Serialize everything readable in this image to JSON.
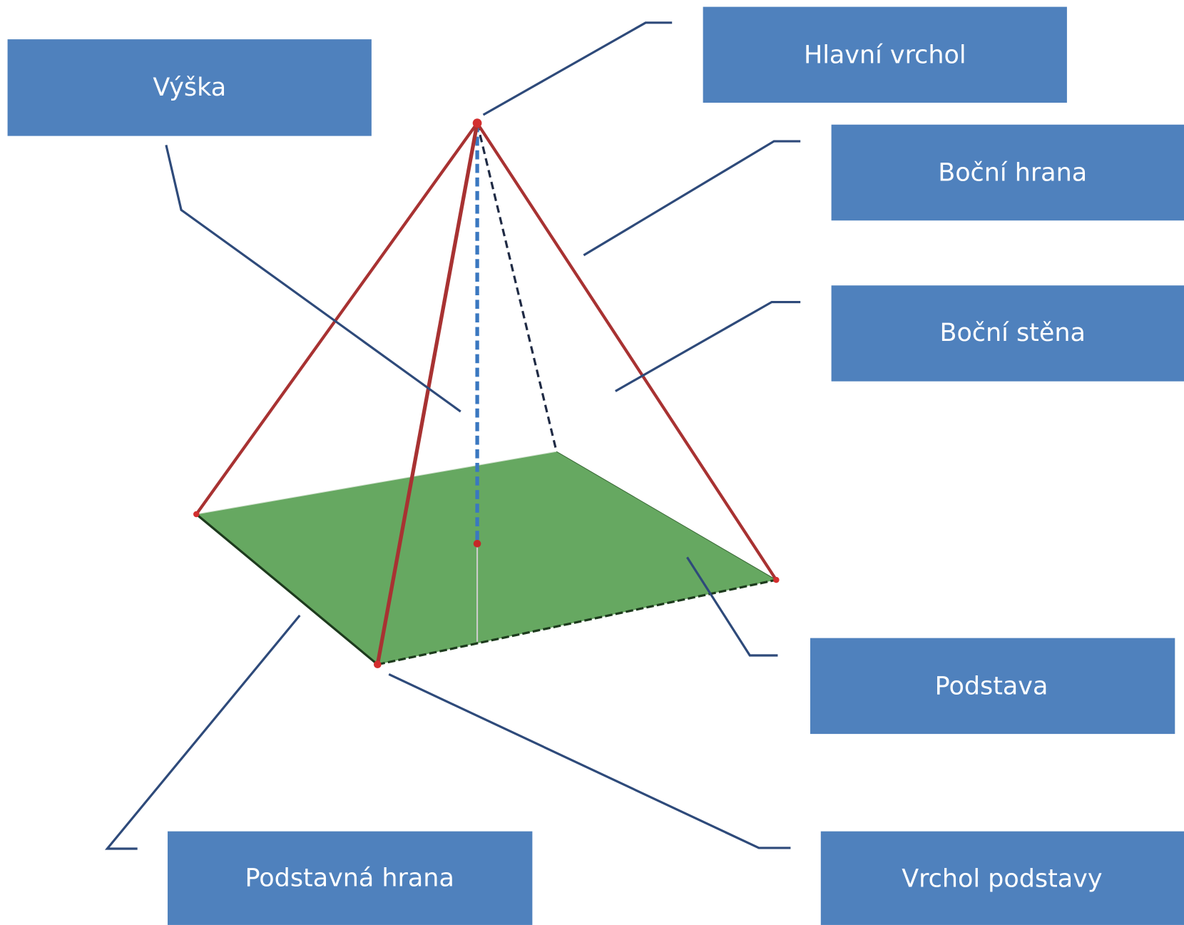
{
  "labels": {
    "apex": "Hlavní vrchol",
    "height": "Výška",
    "lateral_edge": "Boční hrana",
    "lateral_face": "Boční stěna",
    "base": "Podstava",
    "base_edge": "Podstavná hrana",
    "base_vertex": "Vrchol podstavy"
  }
}
